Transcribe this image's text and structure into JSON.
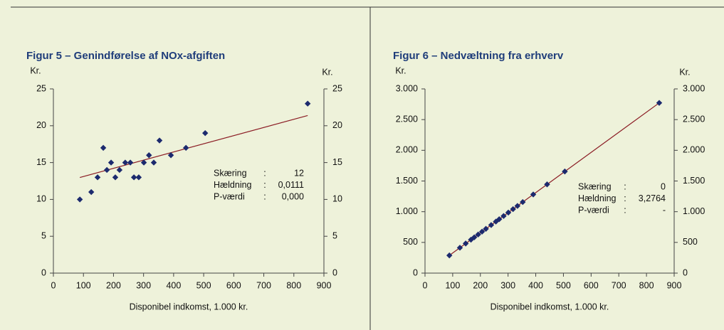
{
  "chart_data": [
    {
      "type": "scatter",
      "title": "Figur 5 – Genindførelse af NOx-afgiften",
      "xlabel": "Disponibel indkomst, 1.000 kr.",
      "ylabel": "Kr.",
      "y2label": "Kr.",
      "x": [
        88,
        126,
        147,
        166,
        178,
        192,
        206,
        220,
        239,
        256,
        268,
        284,
        301,
        318,
        334,
        353,
        391,
        441,
        505,
        846
      ],
      "values": [
        10,
        11,
        13,
        17,
        14,
        15,
        13,
        14,
        15,
        15,
        13,
        13,
        15,
        16,
        15,
        18,
        16,
        17,
        19,
        23
      ],
      "color": "#1c2a6e",
      "line_color": "#8b1c24",
      "xlim": [
        0,
        900
      ],
      "xticks": [
        0,
        100,
        200,
        300,
        400,
        500,
        600,
        700,
        800,
        900
      ],
      "ylim": [
        0,
        25
      ],
      "yticks": [
        0,
        5,
        10,
        15,
        20,
        25
      ],
      "y2lim": [
        0,
        25
      ],
      "y2ticks": [
        0,
        5,
        10,
        15,
        20,
        25
      ],
      "trendline": {
        "separator": ":",
        "intercept_label": "Skæring",
        "intercept": 12,
        "slope_label": "Hældning",
        "slope": {
          "value": 0.0111,
          "label": "0,0111"
        },
        "p_label": "P-værdi",
        "p_value": "0,000"
      }
    },
    {
      "type": "scatter",
      "title": "Figur 6 – Nedvæltning fra erhverv",
      "xlabel": "Disponibel indkomst, 1.000 kr.",
      "ylabel": "Kr.",
      "y2label": "Kr.",
      "x": [
        88,
        126,
        147,
        166,
        178,
        192,
        206,
        220,
        239,
        256,
        268,
        284,
        301,
        318,
        334,
        353,
        391,
        441,
        505,
        846
      ],
      "values": [
        288,
        413,
        482,
        544,
        583,
        629,
        675,
        721,
        783,
        839,
        878,
        930,
        986,
        1042,
        1094,
        1157,
        1281,
        1445,
        1655,
        2772
      ],
      "color": "#1c2a6e",
      "line_color": "#8b1c24",
      "xlim": [
        0,
        900
      ],
      "xticks": [
        0,
        100,
        200,
        300,
        400,
        500,
        600,
        700,
        800,
        900
      ],
      "ylim": [
        0,
        3000
      ],
      "yticks": [
        0,
        500,
        {
          "value": 1000,
          "label": "1.000"
        },
        {
          "value": 1500,
          "label": "1.500"
        },
        {
          "value": 2000,
          "label": "2.000"
        },
        {
          "value": 2500,
          "label": "2.500"
        },
        {
          "value": 3000,
          "label": "3.000"
        }
      ],
      "y2lim": [
        0,
        3000
      ],
      "y2ticks": [
        0,
        500,
        {
          "value": 1000,
          "label": "1.000"
        },
        {
          "value": 1500,
          "label": "1.500"
        },
        {
          "value": 2000,
          "label": "2.000"
        },
        {
          "value": 2500,
          "label": "2.500"
        },
        {
          "value": 3000,
          "label": "3.000"
        }
      ],
      "trendline": {
        "separator": ":",
        "intercept_label": "Skæring",
        "intercept": 0,
        "slope_label": "Hældning",
        "slope": {
          "value": 3.2764,
          "label": "3,2764"
        },
        "p_label": "P-værdi",
        "p_value": "-"
      }
    }
  ]
}
